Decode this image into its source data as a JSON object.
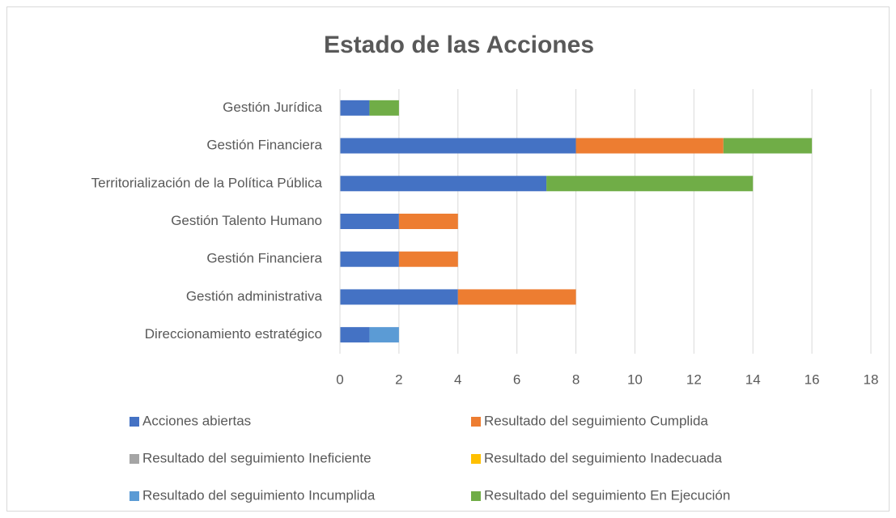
{
  "chart_data": {
    "type": "stacked-barh",
    "title": "Estado de las Acciones",
    "categories": [
      "Gestión Jurídica",
      "Gestión Financiera",
      "Territorialización de la Política Pública",
      "Gestión Talento Humano",
      "Gestión Financiera",
      "Gestión administrativa",
      "Direccionamiento estratégico"
    ],
    "series": [
      {
        "name": "Acciones abiertas",
        "color": "#4472c4",
        "values": [
          1,
          8,
          7,
          2,
          2,
          4,
          1
        ]
      },
      {
        "name": "Resultado del seguimiento Cumplida",
        "color": "#ed7d31",
        "values": [
          0,
          5,
          0,
          2,
          2,
          4,
          0
        ]
      },
      {
        "name": "Resultado del seguimiento Ineficiente",
        "color": "#a5a5a5",
        "values": [
          0,
          0,
          0,
          0,
          0,
          0,
          0
        ]
      },
      {
        "name": "Resultado del seguimiento Inadecuada",
        "color": "#ffc000",
        "values": [
          0,
          0,
          0,
          0,
          0,
          0,
          0
        ]
      },
      {
        "name": "Resultado del seguimiento Incumplida",
        "color": "#5b9bd5",
        "values": [
          0,
          0,
          0,
          0,
          0,
          0,
          1
        ]
      },
      {
        "name": "Resultado del seguimiento En Ejecución",
        "color": "#70ad47",
        "values": [
          1,
          3,
          7,
          0,
          0,
          0,
          0
        ]
      }
    ],
    "xlim": [
      0,
      18
    ],
    "xticks": [
      0,
      2,
      4,
      6,
      8,
      10,
      12,
      14,
      16,
      18
    ],
    "grid": true,
    "legend": "bottom"
  }
}
